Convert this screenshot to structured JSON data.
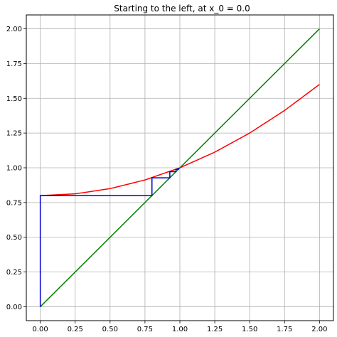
{
  "chart_data": {
    "type": "line",
    "title": "Starting to the left, at x_0 = 0.0",
    "xlabel": "",
    "ylabel": "",
    "xlim": [
      -0.1,
      2.1
    ],
    "ylim": [
      -0.1,
      2.1
    ],
    "grid": true,
    "x_ticks": [
      "0.00",
      "0.25",
      "0.50",
      "0.75",
      "1.00",
      "1.25",
      "1.50",
      "1.75",
      "2.00"
    ],
    "y_ticks": [
      "0.00",
      "0.25",
      "0.50",
      "0.75",
      "1.00",
      "1.25",
      "1.50",
      "1.75",
      "2.00"
    ],
    "series": [
      {
        "color": "#008000",
        "points": [
          [
            0.0,
            0.0
          ],
          [
            2.0,
            2.0
          ]
        ]
      },
      {
        "color": "#ff0000",
        "points": [
          [
            0.0,
            0.8
          ],
          [
            0.25,
            0.8125
          ],
          [
            0.5,
            0.85
          ],
          [
            0.75,
            0.9125
          ],
          [
            1.0,
            1.0
          ],
          [
            1.25,
            1.1125
          ],
          [
            1.5,
            1.25
          ],
          [
            1.75,
            1.4125
          ],
          [
            2.0,
            1.6
          ]
        ]
      },
      {
        "color": "#0000cc",
        "points": [
          [
            0.0,
            0.0
          ],
          [
            0.0,
            0.8
          ],
          [
            0.8,
            0.8
          ],
          [
            0.8,
            0.928
          ],
          [
            0.928,
            0.928
          ],
          [
            0.928,
            0.972
          ],
          [
            0.972,
            0.972
          ],
          [
            0.972,
            0.989
          ],
          [
            0.989,
            0.989
          ],
          [
            0.989,
            0.996
          ],
          [
            0.996,
            0.996
          ]
        ]
      }
    ]
  }
}
